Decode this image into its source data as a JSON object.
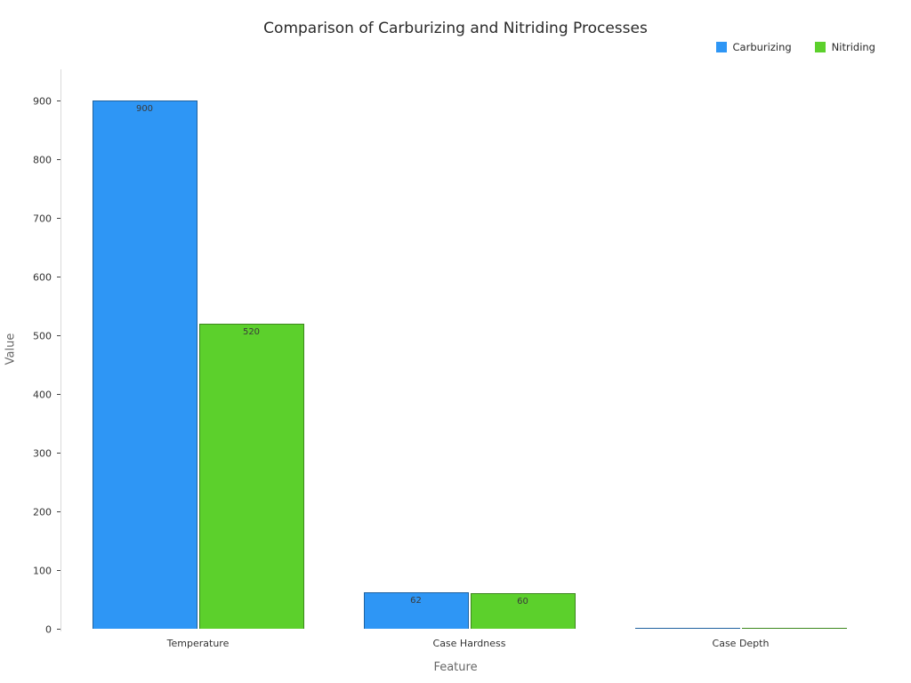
{
  "chart_data": {
    "type": "bar",
    "title": "Comparison of Carburizing and Nitriding Processes",
    "xlabel": "Feature",
    "ylabel": "Value",
    "categories": [
      "Temperature",
      "Case Hardness",
      "Case Depth"
    ],
    "series": [
      {
        "name": "Carburizing",
        "color": "#2e96f5",
        "values": [
          900,
          62,
          1.5
        ]
      },
      {
        "name": "Nitriding",
        "color": "#5cd02c",
        "values": [
          520,
          60,
          0.5
        ]
      }
    ],
    "bar_labels_visible": [
      "900",
      "520",
      "62",
      "60"
    ],
    "ylim": [
      0,
      950
    ],
    "yticks": [
      0,
      100,
      200,
      300,
      400,
      500,
      600,
      700,
      800,
      900
    ],
    "grid": false,
    "legend_position": "top-right"
  }
}
